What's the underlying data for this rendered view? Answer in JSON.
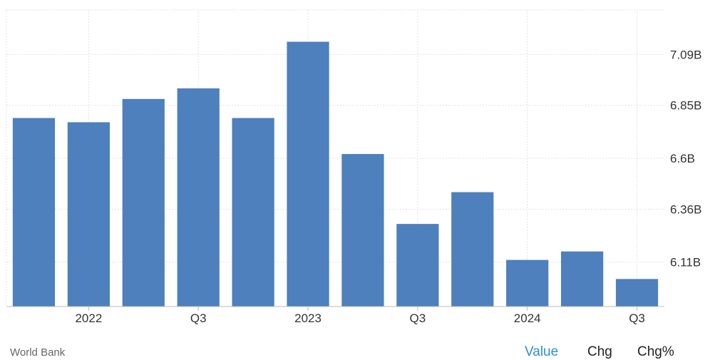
{
  "chart_data": {
    "type": "bar",
    "title": "",
    "xlabel": "",
    "ylabel": "",
    "categories": [
      "Q1 2022",
      "Q2 2022",
      "Q3 2022",
      "Q4 2022",
      "Q1 2023",
      "Q2 2023",
      "Q3 2023",
      "Q4 2023",
      "Q1 2024",
      "Q2 2024",
      "Q3 2024",
      "Q4 2024"
    ],
    "values": [
      6.79,
      6.77,
      6.88,
      6.93,
      6.79,
      7.15,
      6.62,
      6.29,
      6.44,
      6.12,
      6.16,
      6.03
    ],
    "ylim": [
      5.9,
      7.3
    ],
    "yticks": [
      {
        "value": 6.11,
        "label": "6.11B"
      },
      {
        "value": 6.36,
        "label": "6.36B"
      },
      {
        "value": 6.6,
        "label": "6.6B"
      },
      {
        "value": 6.85,
        "label": "6.85B"
      },
      {
        "value": 7.09,
        "label": "7.09B"
      }
    ],
    "xticks": [
      {
        "label": "2022",
        "at": 1.5
      },
      {
        "label": "Q3",
        "at": 3.5
      },
      {
        "label": "2023",
        "at": 5.5
      },
      {
        "label": "Q3",
        "at": 7.5
      },
      {
        "label": "2024",
        "at": 9.5
      },
      {
        "label": "Q3",
        "at": 11.5
      }
    ],
    "grid": true,
    "bar_color": "#4d80bc"
  },
  "source_label": "World Bank",
  "tabs": [
    {
      "label": "Value",
      "active": true
    },
    {
      "label": "Chg",
      "active": false
    },
    {
      "label": "Chg%",
      "active": false
    }
  ],
  "colors": {
    "active_tab": "#2a8fd8",
    "grid": "#e3e3e3",
    "axis": "#bbbbbb"
  }
}
